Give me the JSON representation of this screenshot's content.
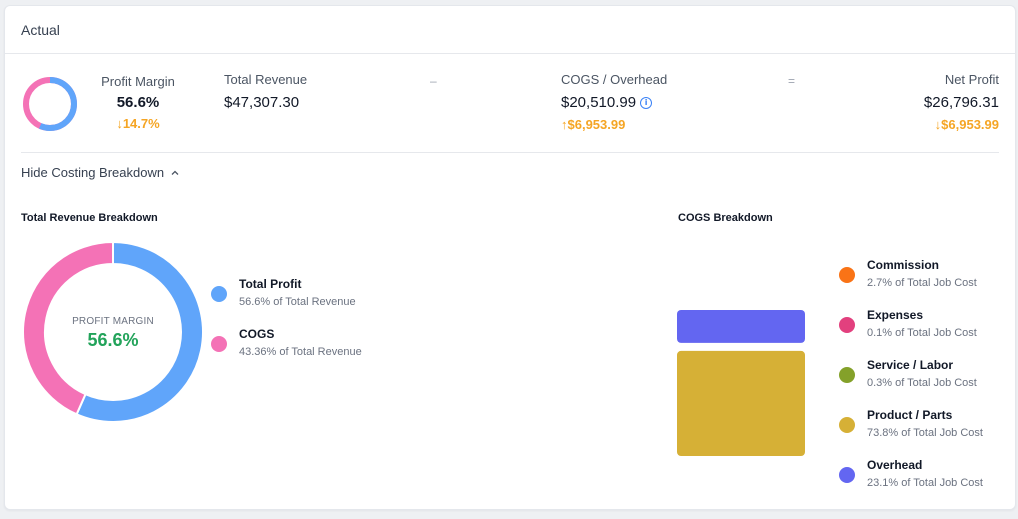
{
  "header": {
    "title": "Actual"
  },
  "summary": {
    "profit_margin": {
      "label": "Profit Margin",
      "value": "56.6%",
      "change": "14.7%",
      "direction": "down",
      "fraction": 0.566
    },
    "total_revenue": {
      "label": "Total Revenue",
      "value": "$47,307.30"
    },
    "minus_symbol": "–",
    "cogs": {
      "label": "COGS / Overhead",
      "value": "$20,510.99",
      "change": "$6,953.99",
      "direction": "up"
    },
    "equals_symbol": "=",
    "net_profit": {
      "label": "Net Profit",
      "value": "$26,796.31",
      "change": "$6,953.99",
      "direction": "down"
    }
  },
  "toggle": {
    "label": "Hide Costing Breakdown",
    "icon": "chevron-up-icon"
  },
  "revenue_breakdown": {
    "title": "Total Revenue Breakdown",
    "center_label": "PROFIT MARGIN",
    "center_value": "56.6%",
    "legend": [
      {
        "title": "Total Profit",
        "subtitle": "56.6% of Total Revenue",
        "color": "#60a5fa"
      },
      {
        "title": "COGS",
        "subtitle": "43.36% of Total Revenue",
        "color": "#f472b6"
      }
    ]
  },
  "cogs_breakdown": {
    "title": "COGS Breakdown",
    "legend": [
      {
        "title": "Commission",
        "subtitle": "2.7% of Total Job Cost",
        "color": "#f97316"
      },
      {
        "title": "Expenses",
        "subtitle": "0.1% of Total Job Cost",
        "color": "#e2407e"
      },
      {
        "title": "Service / Labor",
        "subtitle": "0.3% of Total Job Cost",
        "color": "#84a12a"
      },
      {
        "title": "Product / Parts",
        "subtitle": "73.8% of Total Job Cost",
        "color": "#d6b036"
      },
      {
        "title": "Overhead",
        "subtitle": "23.1% of Total Job Cost",
        "color": "#6366f1"
      }
    ]
  },
  "chart_data": [
    {
      "type": "pie",
      "categories": [
        "Total Profit",
        "COGS"
      ],
      "values": [
        56.6,
        43.36
      ],
      "colors": [
        "#60a5fa",
        "#f472b6"
      ]
    },
    {
      "type": "bar",
      "categories": [
        "Product / Parts",
        "Overhead"
      ],
      "values": [
        73.8,
        23.1
      ],
      "colors": [
        "#d6b036",
        "#6366f1"
      ]
    }
  ]
}
